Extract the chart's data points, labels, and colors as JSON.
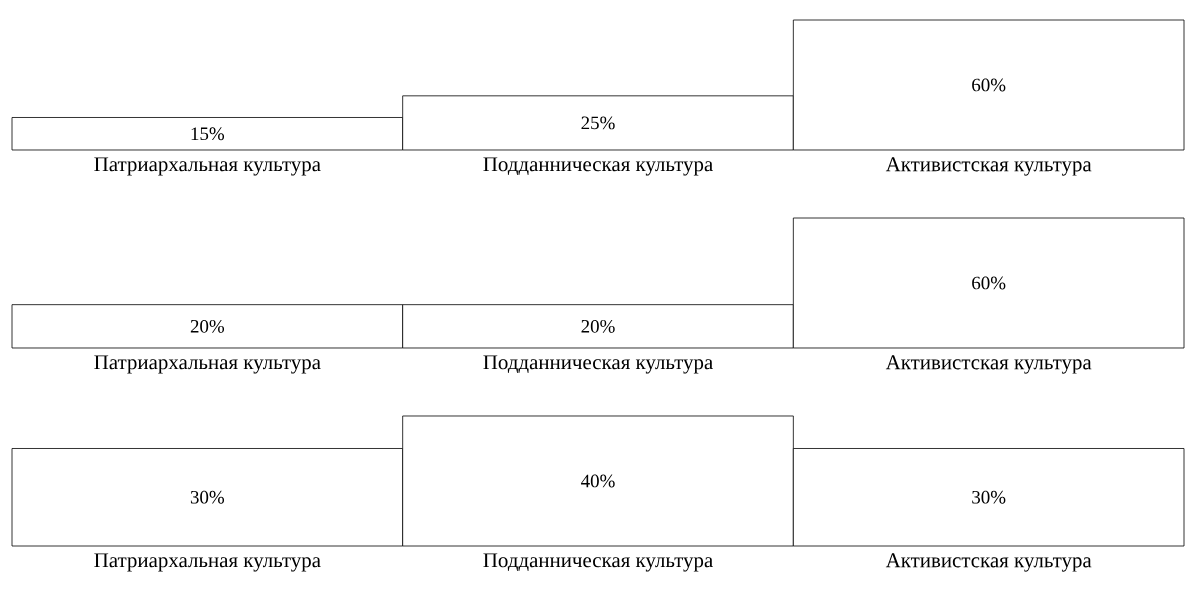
{
  "chart_data": [
    {
      "type": "bar",
      "categories": [
        "Патриархальная культура",
        "Подданническая культура",
        "Активистская культура"
      ],
      "values": [
        15,
        25,
        60
      ],
      "value_labels": [
        "15%",
        "25%",
        "60%"
      ],
      "color": "#ffffff"
    },
    {
      "type": "bar",
      "categories": [
        "Патриархальная культура",
        "Подданническая культура",
        "Активистская культура"
      ],
      "values": [
        20,
        20,
        60
      ],
      "value_labels": [
        "20%",
        "20%",
        "60%"
      ],
      "color": "#ffffff"
    },
    {
      "type": "bar",
      "categories": [
        "Патриархальная культура",
        "Подданническая культура",
        "Активистская культура"
      ],
      "values": [
        30,
        40,
        30
      ],
      "value_labels": [
        "30%",
        "40%",
        "30%"
      ],
      "color": "#ffffff"
    }
  ]
}
